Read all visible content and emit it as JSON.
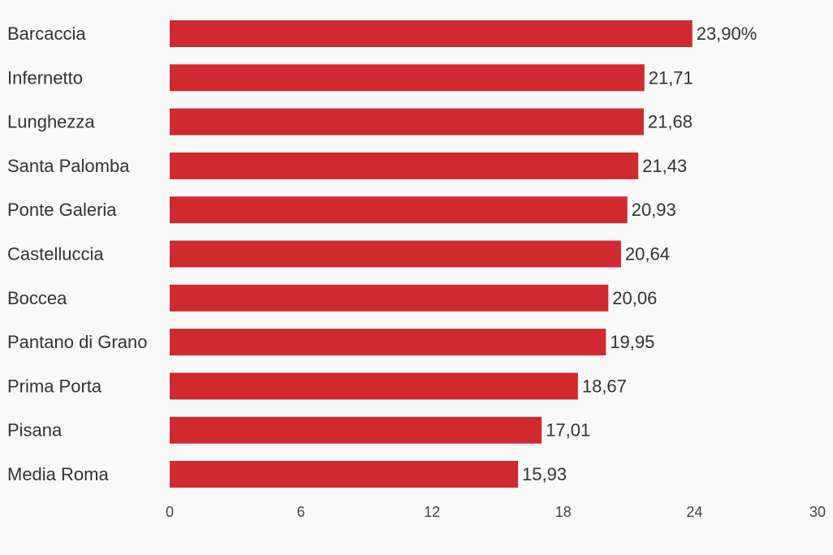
{
  "chart_data": {
    "type": "bar",
    "orientation": "horizontal",
    "categories": [
      "Barcaccia",
      "Infernetto",
      "Lunghezza",
      "Santa Palomba",
      "Ponte Galeria",
      "Castelluccia",
      "Boccea",
      "Pantano di Grano",
      "Prima Porta",
      "Pisana",
      "Media Roma"
    ],
    "values": [
      23.9,
      21.71,
      21.68,
      21.43,
      20.93,
      20.64,
      20.06,
      19.95,
      18.67,
      17.01,
      15.93
    ],
    "value_labels": [
      "23,90%",
      "21,71",
      "21,68",
      "21,43",
      "20,93",
      "20,64",
      "20,06",
      "19,95",
      "18,67",
      "17,01",
      "15,93"
    ],
    "xticks": [
      0,
      6,
      12,
      18,
      24,
      30
    ],
    "tick_labels": [
      "0",
      "6",
      "12",
      "18",
      "24",
      "30"
    ],
    "xlim": [
      0,
      30
    ],
    "title": "",
    "xlabel": "",
    "ylabel": "",
    "grid": false,
    "legend": "none",
    "bar_color": "#cf2a30",
    "background_color": "#f9f9f9"
  }
}
